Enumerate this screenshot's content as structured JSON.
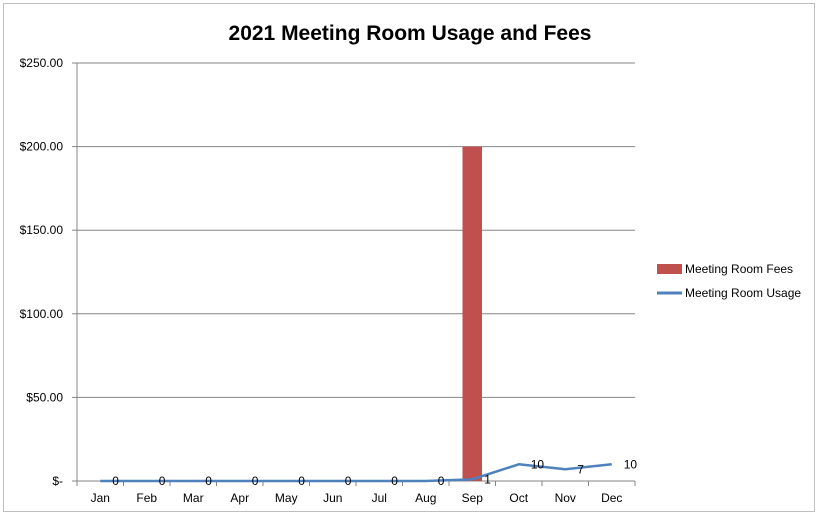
{
  "chart_data": {
    "type": "bar",
    "title": "2021 Meeting Room Usage and Fees",
    "categories": [
      "Jan",
      "Feb",
      "Mar",
      "Apr",
      "May",
      "Jun",
      "Jul",
      "Aug",
      "Sep",
      "Oct",
      "Nov",
      "Dec"
    ],
    "series": [
      {
        "name": "Meeting Room Fees",
        "type": "bar",
        "color": "#C0504D",
        "values": [
          0,
          0,
          0,
          0,
          0,
          0,
          0,
          0,
          200,
          0,
          0,
          0
        ]
      },
      {
        "name": "Meeting Room Usage",
        "type": "line",
        "color": "#4F81BD",
        "values": [
          0,
          0,
          0,
          0,
          0,
          0,
          0,
          0,
          1,
          10,
          7,
          10
        ],
        "data_labels": [
          "0",
          "0",
          "0",
          "0",
          "0",
          "0",
          "0",
          "0",
          "1",
          "10",
          "7",
          "10"
        ]
      }
    ],
    "ylim": [
      0,
      250
    ],
    "yticks": [
      0,
      50,
      100,
      150,
      200,
      250
    ],
    "ytick_labels": [
      "$-",
      "$50.00",
      "$100.00",
      "$150.00",
      "$200.00",
      "$250.00"
    ],
    "grid": true,
    "legend_position": "right"
  }
}
